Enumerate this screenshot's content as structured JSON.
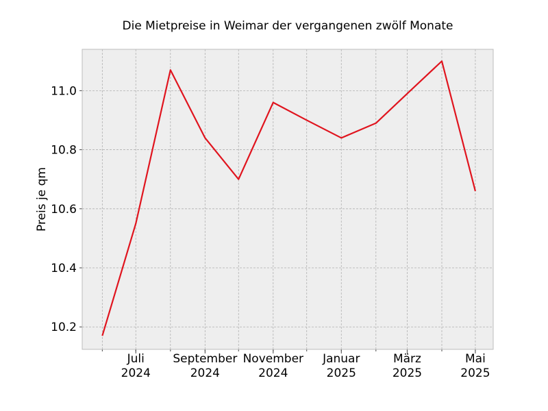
{
  "chart_data": {
    "type": "line",
    "title": "Die Mietpreise in Weimar der vergangenen zwölf Monate",
    "ylabel": "Preis je qm",
    "xlabel": "",
    "x": [
      "2024-06",
      "2024-07",
      "2024-08",
      "2024-09",
      "2024-10",
      "2024-11",
      "2024-12",
      "2025-01",
      "2025-02",
      "2025-03",
      "2025-04",
      "2025-05"
    ],
    "series": [
      {
        "values": [
          10.17,
          10.55,
          11.07,
          10.84,
          10.7,
          10.96,
          10.9,
          10.84,
          10.89,
          10.99,
          11.1,
          10.66
        ],
        "color": "#e0141e"
      }
    ],
    "xticks": [
      {
        "x": "2024-07",
        "line1": "Juli",
        "line2": "2024"
      },
      {
        "x": "2024-09",
        "line1": "September",
        "line2": "2024"
      },
      {
        "x": "2024-11",
        "line1": "November",
        "line2": "2024"
      },
      {
        "x": "2025-01",
        "line1": "Januar",
        "line2": "2025"
      },
      {
        "x": "2025-03",
        "line1": "März",
        "line2": "2025"
      },
      {
        "x": "2025-05",
        "line1": "Mai",
        "line2": "2025"
      }
    ],
    "yticks": [
      10.2,
      10.4,
      10.6,
      10.8,
      11.0
    ],
    "ytick_labels": [
      "10.2",
      "10.4",
      "10.6",
      "10.8",
      "11.0"
    ],
    "ylim": [
      10.124,
      11.14
    ],
    "xlim": [
      "2024-05-14",
      "2025-05-17"
    ],
    "grid": true,
    "legend": "none",
    "colors": {
      "background": "#eeeeee",
      "grid": "#b0b0b0",
      "frame": "#bcbcbc"
    }
  }
}
